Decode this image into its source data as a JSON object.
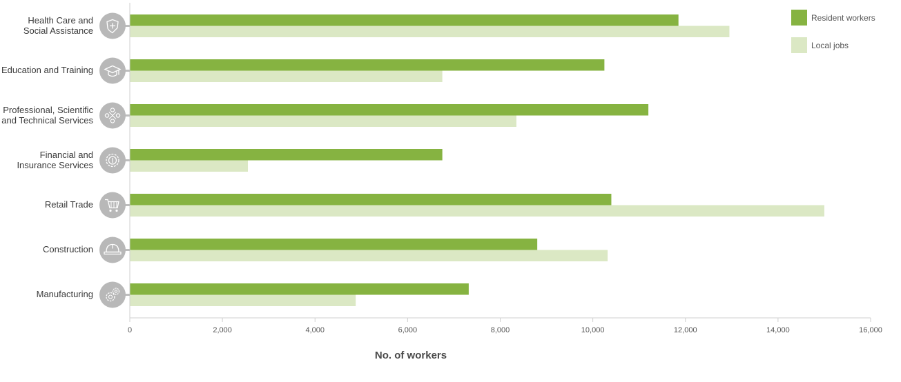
{
  "chart_data": {
    "type": "bar",
    "orientation": "horizontal",
    "title": "",
    "xlabel": "No. of workers",
    "ylabel": "",
    "categories": [
      [
        "Health Care and",
        "Social Assistance"
      ],
      [
        "Education and Training"
      ],
      [
        "Professional, Scientific",
        "and Technical Services"
      ],
      [
        "Financial and",
        "Insurance Services"
      ],
      [
        "Retail Trade"
      ],
      [
        "Construction"
      ],
      [
        "Manufacturing"
      ]
    ],
    "category_icons": [
      "health-shield-icon",
      "graduation-cap-icon",
      "network-people-icon",
      "coin-gear-icon",
      "shopping-cart-icon",
      "hard-hat-icon",
      "gears-icon"
    ],
    "series": [
      {
        "name": "Resident workers",
        "color": "#86b341",
        "values": [
          11850,
          10250,
          11200,
          6750,
          10400,
          8800,
          7320
        ]
      },
      {
        "name": "Local jobs",
        "color": "#dbe8c4",
        "values": [
          12950,
          6750,
          8350,
          2550,
          15000,
          10320,
          4880
        ]
      }
    ],
    "xlim": [
      0,
      16000
    ],
    "xticks": [
      "0",
      "2,000",
      "4,000",
      "6,000",
      "8,000",
      "10,000",
      "12,000",
      "14,000",
      "16,000"
    ],
    "xtick_values": [
      0,
      2000,
      4000,
      6000,
      8000,
      10000,
      12000,
      14000,
      16000
    ],
    "grid": false,
    "legend_position": "top-right"
  }
}
